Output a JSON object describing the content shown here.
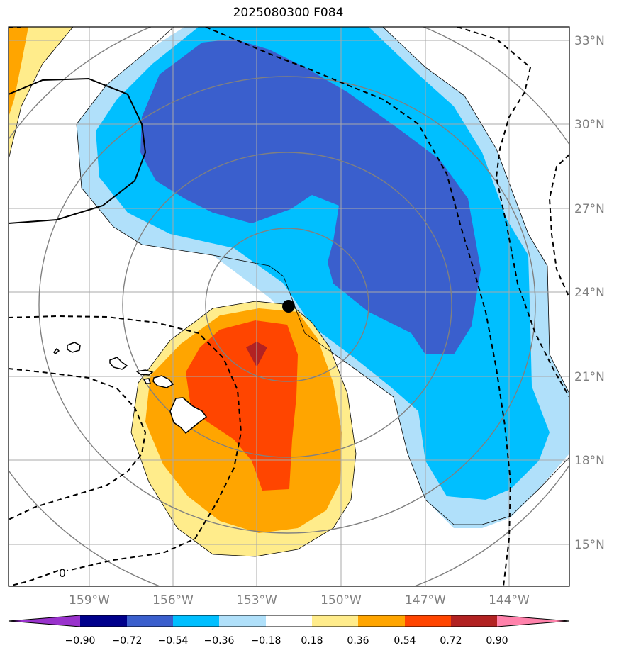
{
  "title": "2025080300 F084",
  "map": {
    "lon_labels": [
      "159°W",
      "156°W",
      "153°W",
      "150°W",
      "147°W",
      "144°W"
    ],
    "lat_labels": [
      "33°N",
      "30°N",
      "27°N",
      "24°N",
      "21°N",
      "18°N",
      "15°N"
    ],
    "contour_label": "0",
    "storm_marker": {
      "lon": -151.8,
      "lat": 23.5
    }
  },
  "colorbar": {
    "boundaries": [
      -0.9,
      -0.72,
      -0.54,
      -0.36,
      -0.18,
      0.18,
      0.36,
      0.54,
      0.72,
      0.9
    ],
    "labels": [
      "−0.90",
      "−0.72",
      "−0.54",
      "−0.36",
      "−0.18",
      "0.18",
      "0.36",
      "0.54",
      "0.72",
      "0.90"
    ],
    "colors": [
      "#9932cc",
      "#00008b",
      "#3a5fcd",
      "#00bfff",
      "#b0e0fa",
      "#ffffff",
      "#ffec8b",
      "#ffa500",
      "#ff4500",
      "#b22222",
      "#ff82ab"
    ]
  }
}
